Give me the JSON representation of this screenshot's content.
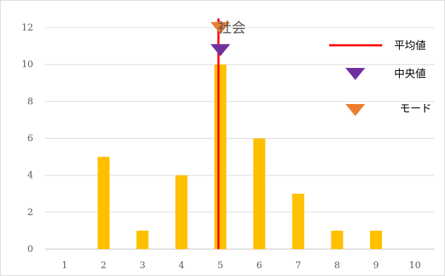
{
  "chart_data": {
    "type": "bar",
    "title": "社会",
    "categories": [
      "1",
      "2",
      "3",
      "4",
      "5",
      "6",
      "7",
      "8",
      "9",
      "10"
    ],
    "values": [
      0,
      5,
      1,
      4,
      10,
      6,
      3,
      1,
      1,
      0
    ],
    "ylim": [
      0,
      13
    ],
    "yticks": [
      0,
      2,
      4,
      6,
      8,
      10,
      12
    ],
    "grid": true,
    "bar_color": "#FFC000",
    "mean": {
      "label": "平均値",
      "x": 4.95,
      "color": "#FF0000"
    },
    "median": {
      "label": "中央値",
      "x": 5,
      "y": 10.8,
      "color": "#7030A0"
    },
    "mode": {
      "label": "モード",
      "x": 5,
      "y": 12,
      "color": "#ED7D31"
    },
    "legend_position": "top-right"
  }
}
